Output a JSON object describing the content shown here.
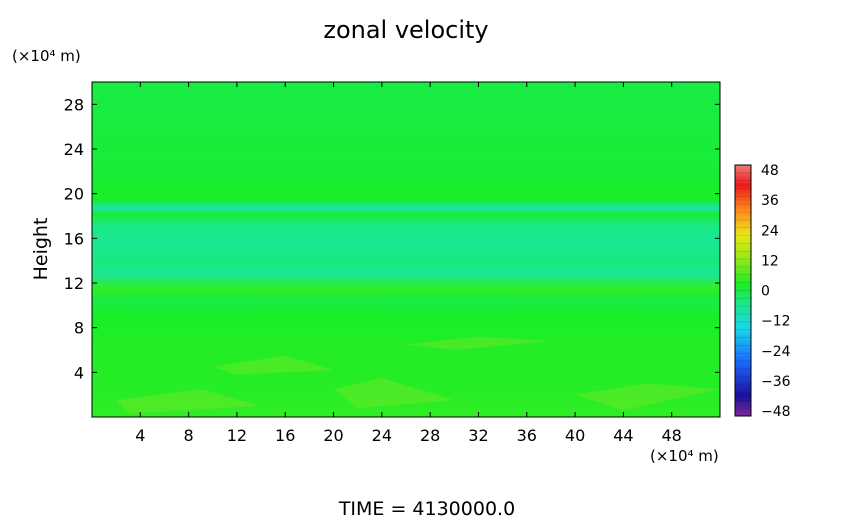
{
  "chart_data": {
    "type": "heatmap",
    "title": "zonal velocity",
    "ylabel": "Height",
    "x_unit": "(×10⁴ m)",
    "y_unit": "(×10⁴ m)",
    "x_ticks": [
      "4",
      "8",
      "12",
      "16",
      "20",
      "24",
      "28",
      "32",
      "36",
      "40",
      "44",
      "48"
    ],
    "y_ticks": [
      "4",
      "8",
      "12",
      "16",
      "20",
      "24",
      "28"
    ],
    "xlim": [
      0,
      52
    ],
    "ylim": [
      0,
      30
    ],
    "colorbar": {
      "ticks": [
        "48",
        "36",
        "24",
        "12",
        "0",
        "−12",
        "−24",
        "−36",
        "−48"
      ],
      "range": [
        -48,
        48
      ]
    },
    "field_summary": {
      "height_profile": [
        {
          "height": 0,
          "value": 4
        },
        {
          "height": 3,
          "value": 3
        },
        {
          "height": 6,
          "value": 3
        },
        {
          "height": 9,
          "value": 2
        },
        {
          "height": 10.5,
          "value": 0
        },
        {
          "height": 11.5,
          "value": 4
        },
        {
          "height": 12.8,
          "value": -6
        },
        {
          "height": 14,
          "value": -4
        },
        {
          "height": 15.5,
          "value": -6
        },
        {
          "height": 17,
          "value": -5
        },
        {
          "height": 18.2,
          "value": 1
        },
        {
          "height": 18.7,
          "value": -8
        },
        {
          "height": 19.5,
          "value": 2
        },
        {
          "height": 22,
          "value": 1
        },
        {
          "height": 30,
          "value": 0
        }
      ]
    },
    "footer": "TIME  =  4130000.0"
  }
}
